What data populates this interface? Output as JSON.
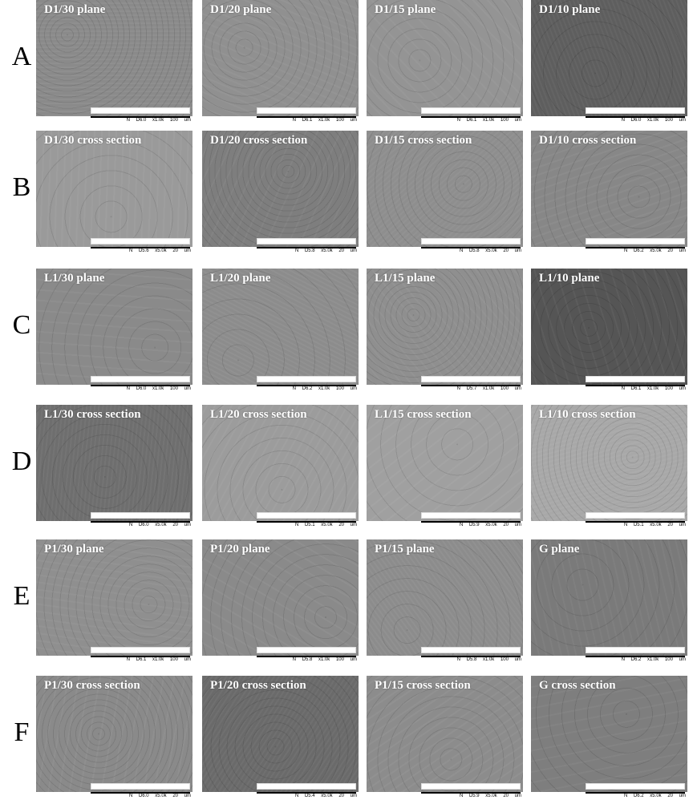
{
  "rows": [
    {
      "letter": "A",
      "panels": [
        {
          "label": "D1/30 plane",
          "caption": "N D6.0 x1.0k 100 um",
          "tone": "#8a8a8a"
        },
        {
          "label": "D1/20 plane",
          "caption": "N D6.1 x1.0k 100 um",
          "tone": "#909090"
        },
        {
          "label": "D1/15 plane",
          "caption": "N D6.1 x1.0k 100 um",
          "tone": "#949494"
        },
        {
          "label": "D1/10 plane",
          "caption": "N D6.0 x1.0k 100 um",
          "tone": "#5e5e5e"
        }
      ]
    },
    {
      "letter": "B",
      "panels": [
        {
          "label": "D1/30 cross section",
          "caption": "N D5.6 x5.0k 20 um",
          "tone": "#9a9a9a"
        },
        {
          "label": "D1/20 cross section",
          "caption": "N D5.8 x5.0k 20 um",
          "tone": "#7e7e7e"
        },
        {
          "label": "D1/15 cross section",
          "caption": "N D5.8 x5.0k 20 um",
          "tone": "#8e8e8e"
        },
        {
          "label": "D1/10 cross section",
          "caption": "N D6.2 x5.0k 20 um",
          "tone": "#878787"
        }
      ]
    },
    {
      "letter": "C",
      "panels": [
        {
          "label": "L1/30 plane",
          "caption": "N D6.0 x1.0k 100 um",
          "tone": "#8a8a8a"
        },
        {
          "label": "L1/20 plane",
          "caption": "N D6.2 x1.0k 100 um",
          "tone": "#8c8c8c"
        },
        {
          "label": "L1/15 plane",
          "caption": "N D5.7 x1.0k 100 um",
          "tone": "#8f8f8f"
        },
        {
          "label": "L1/10 plane",
          "caption": "N D6.1 x1.0k 100 um",
          "tone": "#555555"
        }
      ]
    },
    {
      "letter": "D",
      "panels": [
        {
          "label": "L1/30 cross section",
          "caption": "N D6.0 x5.0k 20 um",
          "tone": "#6e6e6e"
        },
        {
          "label": "L1/20 cross section",
          "caption": "N D5.1 x5.0k 20 um",
          "tone": "#9c9c9c"
        },
        {
          "label": "L1/15 cross section",
          "caption": "N D5.9 x5.0k 20 um",
          "tone": "#a0a0a0"
        },
        {
          "label": "L1/10 cross section",
          "caption": "N D5.1 x5.0k 20 um",
          "tone": "#a8a8a8"
        }
      ]
    },
    {
      "letter": "E",
      "panels": [
        {
          "label": "P1/30 plane",
          "caption": "N D6.1 x1.0k 100 um",
          "tone": "#8f8f8f"
        },
        {
          "label": "P1/20 plane",
          "caption": "N D5.8 x1.0k 100 um",
          "tone": "#8a8a8a"
        },
        {
          "label": "P1/15 plane",
          "caption": "N D5.8 x1.0k 100 um",
          "tone": "#8c8c8c"
        },
        {
          "label": "G plane",
          "caption": "N D6.2 x1.0k 100 um",
          "tone": "#7a7a7a"
        }
      ]
    },
    {
      "letter": "F",
      "panels": [
        {
          "label": "P1/30 cross section",
          "caption": "N D6.0 x5.0k 20 um",
          "tone": "#8a8a8a"
        },
        {
          "label": "P1/20 cross section",
          "caption": "N D5.4 x5.0k 20 um",
          "tone": "#6a6a6a"
        },
        {
          "label": "P1/15 cross section",
          "caption": "N D5.9 x5.0k 20 um",
          "tone": "#8c8c8c"
        },
        {
          "label": "G cross section",
          "caption": "N D6.2 x5.0k 20 um",
          "tone": "#7e7e7e"
        }
      ]
    }
  ]
}
